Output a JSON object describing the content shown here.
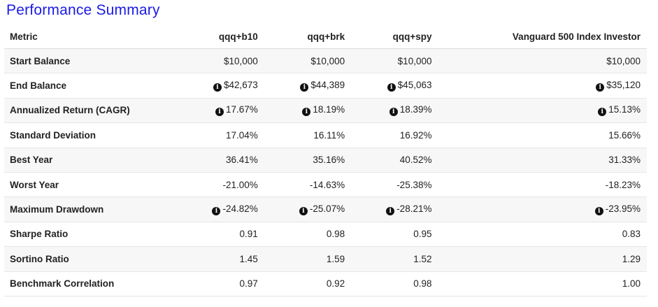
{
  "title": "Performance Summary",
  "columns": [
    "Metric",
    "qqq+b10",
    "qqq+brk",
    "qqq+spy",
    "Vanguard 500 Index Investor"
  ],
  "rows": [
    {
      "metric": "Start Balance",
      "values": [
        "$10,000",
        "$10,000",
        "$10,000",
        "$10,000"
      ],
      "info": false
    },
    {
      "metric": "End Balance",
      "values": [
        "$42,673",
        "$44,389",
        "$45,063",
        "$35,120"
      ],
      "info": true
    },
    {
      "metric": "Annualized Return (CAGR)",
      "values": [
        "17.67%",
        "18.19%",
        "18.39%",
        "15.13%"
      ],
      "info": true
    },
    {
      "metric": "Standard Deviation",
      "values": [
        "17.04%",
        "16.11%",
        "16.92%",
        "15.66%"
      ],
      "info": false
    },
    {
      "metric": "Best Year",
      "values": [
        "36.41%",
        "35.16%",
        "40.52%",
        "31.33%"
      ],
      "info": false
    },
    {
      "metric": "Worst Year",
      "values": [
        "-21.00%",
        "-14.63%",
        "-25.38%",
        "-18.23%"
      ],
      "info": false
    },
    {
      "metric": "Maximum Drawdown",
      "values": [
        "-24.82%",
        "-25.07%",
        "-28.21%",
        "-23.95%"
      ],
      "info": true
    },
    {
      "metric": "Sharpe Ratio",
      "values": [
        "0.91",
        "0.98",
        "0.95",
        "0.83"
      ],
      "info": false
    },
    {
      "metric": "Sortino Ratio",
      "values": [
        "1.45",
        "1.59",
        "1.52",
        "1.29"
      ],
      "info": false
    },
    {
      "metric": "Benchmark Correlation",
      "values": [
        "0.97",
        "0.92",
        "0.98",
        "1.00"
      ],
      "info": false
    }
  ],
  "info_icon_glyph": "i",
  "colors": {
    "title": "#1a1ae6",
    "stripe": "#f7f7f7",
    "text": "#222222"
  }
}
